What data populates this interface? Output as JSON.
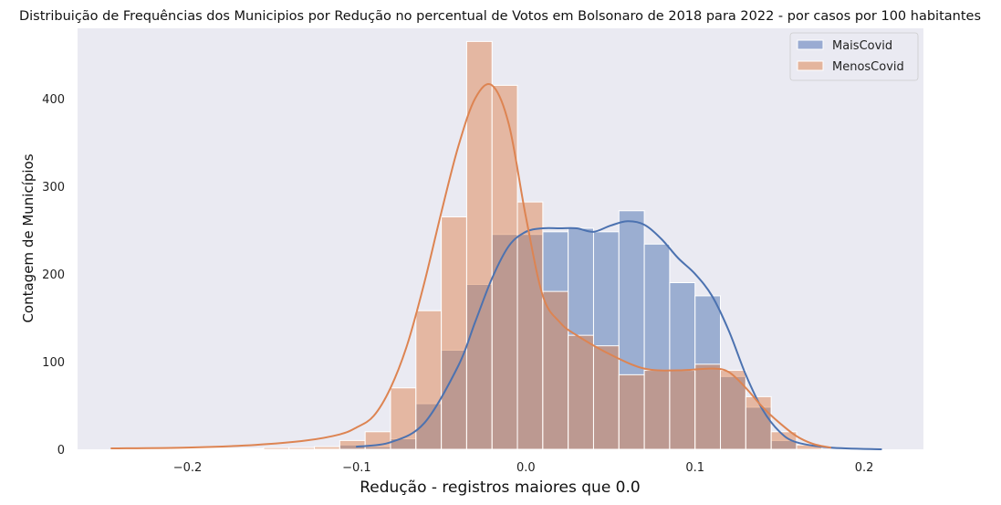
{
  "chart_data": {
    "type": "histogram",
    "title": "Distribuição de Frequências dos Municipios por Redução no percentual de Votos em Bolsonaro de 2018 para 2022 - por casos por 100 habitantes",
    "xlabel": "Redução - registros maiores que 0.0",
    "ylabel": "Contagem de Municípios",
    "xlim": [
      -0.265,
      0.235
    ],
    "ylim": [
      0,
      480
    ],
    "xticks": [
      -0.2,
      -0.1,
      0.0,
      0.1,
      0.2
    ],
    "xtick_labels": [
      "−0.2",
      "−0.1",
      "0.0",
      "0.1",
      "0.2"
    ],
    "yticks": [
      0,
      100,
      200,
      300,
      400
    ],
    "ytick_labels": [
      "0",
      "100",
      "200",
      "300",
      "400"
    ],
    "grid": false,
    "legend": "top-right",
    "bin_edges": [
      -0.245,
      -0.23,
      -0.215,
      -0.2,
      -0.185,
      -0.17,
      -0.155,
      -0.14,
      -0.125,
      -0.11,
      -0.095,
      -0.08,
      -0.065,
      -0.05,
      -0.035,
      -0.02,
      -0.005,
      0.01,
      0.025,
      0.04,
      0.055,
      0.07,
      0.085,
      0.1,
      0.115,
      0.13,
      0.145,
      0.16,
      0.175
    ],
    "series": [
      {
        "name": "MaisCovid",
        "color": "#4c72b0",
        "fill": "#99abd2",
        "counts": [
          0,
          0,
          0,
          0,
          1,
          0,
          0,
          0,
          1,
          5,
          3,
          12,
          52,
          113,
          188,
          245,
          245,
          248,
          252,
          248,
          272,
          234,
          190,
          175,
          83,
          48,
          10,
          0
        ],
        "kde_x": [
          -0.1,
          -0.08,
          -0.06,
          -0.04,
          -0.03,
          -0.02,
          -0.01,
          0.0,
          0.01,
          0.02,
          0.03,
          0.04,
          0.05,
          0.06,
          0.07,
          0.08,
          0.09,
          0.1,
          0.11,
          0.12,
          0.13,
          0.14,
          0.15,
          0.16,
          0.18,
          0.21
        ],
        "kde_y": [
          3,
          8,
          30,
          95,
          145,
          195,
          232,
          248,
          252,
          252,
          252,
          248,
          255,
          260,
          256,
          240,
          218,
          200,
          175,
          135,
          85,
          45,
          20,
          8,
          2,
          0
        ]
      },
      {
        "name": "MenosCovid",
        "color": "#dd8452",
        "fill": "#e4b59d",
        "counts": [
          1,
          1,
          1,
          1,
          1,
          1,
          2,
          2,
          3,
          10,
          20,
          70,
          158,
          265,
          465,
          415,
          282,
          180,
          130,
          118,
          85,
          90,
          90,
          97,
          90,
          60,
          20,
          5
        ],
        "kde_x": [
          -0.245,
          -0.2,
          -0.16,
          -0.13,
          -0.11,
          -0.1,
          -0.09,
          -0.08,
          -0.07,
          -0.06,
          -0.05,
          -0.04,
          -0.03,
          -0.02,
          -0.01,
          0.0,
          0.01,
          0.02,
          0.03,
          0.05,
          0.07,
          0.09,
          0.11,
          0.12,
          0.13,
          0.14,
          0.15,
          0.16,
          0.17,
          0.18
        ],
        "kde_y": [
          1,
          2,
          5,
          10,
          17,
          25,
          38,
          70,
          120,
          190,
          270,
          345,
          400,
          415,
          370,
          265,
          175,
          145,
          130,
          108,
          92,
          90,
          92,
          88,
          70,
          48,
          30,
          15,
          6,
          2
        ]
      }
    ]
  }
}
